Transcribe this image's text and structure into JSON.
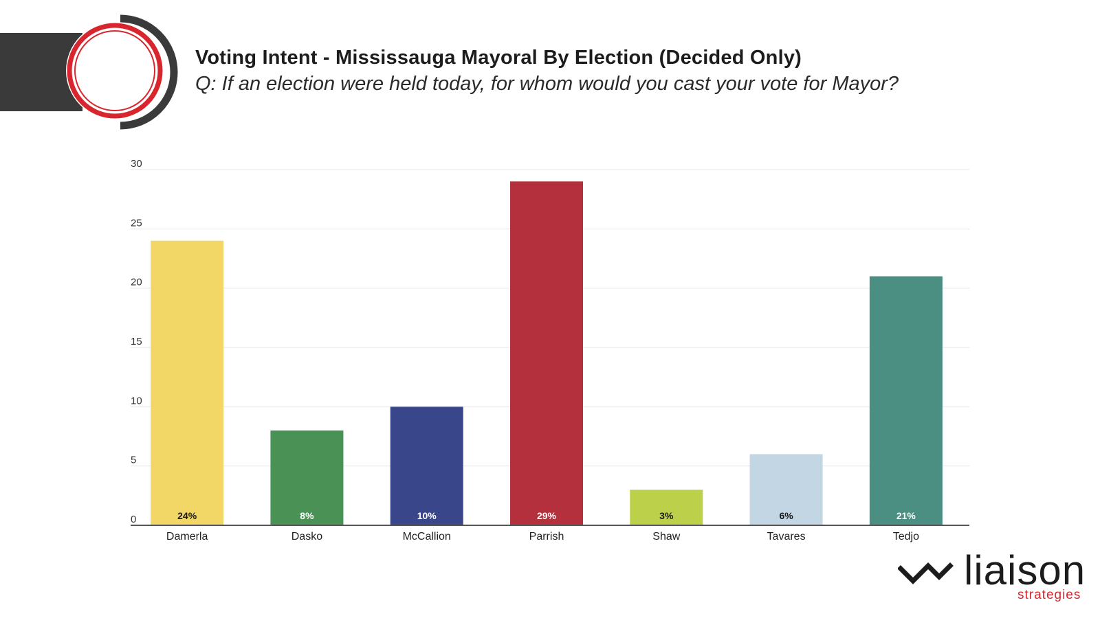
{
  "header": {
    "title": "Voting Intent - Mississauga Mayoral By Election (Decided Only)",
    "subtitle": "Q: If an election were held today, for whom would you cast your vote for Mayor?"
  },
  "chart_data": {
    "type": "bar",
    "title": "Voting Intent - Mississauga Mayoral By Election (Decided Only)",
    "subtitle": "Q: If an election were held today, for whom would you cast your vote for Mayor?",
    "categories": [
      "Damerla",
      "Dasko",
      "McCallion",
      "Parrish",
      "Shaw",
      "Tavares",
      "Tedjo"
    ],
    "values": [
      24,
      8,
      10,
      29,
      3,
      6,
      21
    ],
    "data_labels": [
      "24%",
      "8%",
      "10%",
      "29%",
      "3%",
      "6%",
      "21%"
    ],
    "colors": [
      "#f2d766",
      "#4a9155",
      "#39468a",
      "#b3303c",
      "#bcd04a",
      "#c3d6e4",
      "#4a8f82"
    ],
    "label_colors": [
      "#1a1a1a",
      "#ffffff",
      "#ffffff",
      "#ffffff",
      "#1a1a1a",
      "#1a1a1a",
      "#ffffff"
    ],
    "yticks": [
      "0",
      "5",
      "10",
      "15",
      "20",
      "25",
      "30"
    ],
    "ylim": [
      0,
      30
    ],
    "xlabel": "",
    "ylabel": "",
    "grid": true,
    "legend": "none"
  },
  "logo": {
    "word": "liaison",
    "sub": "strategies",
    "mark_icon": "chevron-logo-icon",
    "mark_color": "#1c1c1c",
    "sub_color": "#d8262e"
  },
  "emblem": {
    "icon": "ring-emblem-icon",
    "ring_color": "#d8262e",
    "arc_color": "#3a3a3a"
  }
}
